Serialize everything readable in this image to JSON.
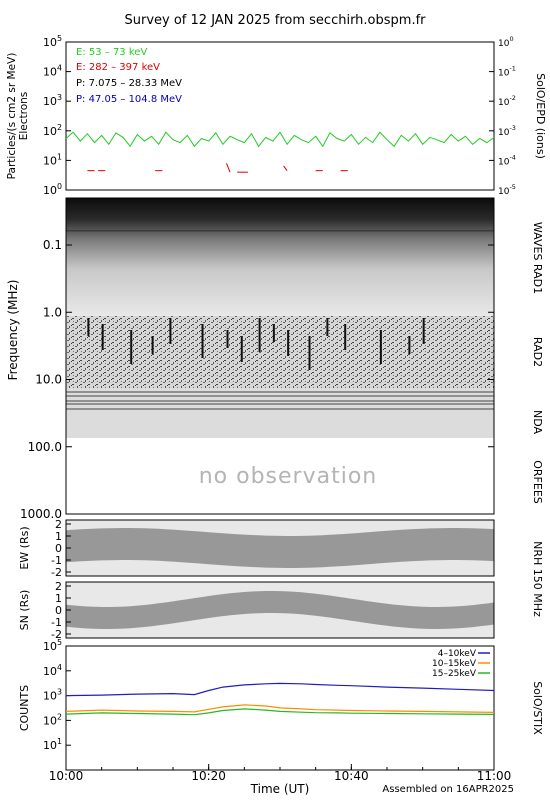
{
  "title": "Survey of 12 JAN 2025 from secchirh.obspm.fr",
  "footer_note": "Assembled on 16APR2025",
  "time_axis": {
    "label": "Time (UT)",
    "ticks": [
      "10:00",
      "10:20",
      "10:40",
      "11:00"
    ],
    "range_minutes": [
      0,
      60
    ]
  },
  "colors": {
    "electron_low": "#22cc22",
    "electron_high": "#dd0000",
    "proton_low": "#000000",
    "proton_high": "#0000cc",
    "stix_4_10": "#1f1fbf",
    "stix_10_15": "#ff8c00",
    "stix_15_25": "#22bb22"
  },
  "panels": {
    "epd": {
      "ylabel": "Particles/(s cm2 sr MeV)",
      "ylabel2": "Electrons",
      "right_label": "SolO/EPD (ions)",
      "left_ticks": [
        "10^0",
        "10^1",
        "10^2",
        "10^3",
        "10^4",
        "10^5"
      ],
      "right_ticks": [
        "10^-5",
        "10^-4",
        "10^-3",
        "10^-2",
        "10^-1",
        "10^0"
      ],
      "legend": [
        "E: 53 – 73 keV",
        "E: 282 – 397 keV",
        "P: 7.075 – 28.33 MeV",
        "P: 47.05 – 104.8 MeV"
      ]
    },
    "waves": {
      "ylabel": "Frequency (MHz)",
      "ticks": [
        "0.1",
        "1.0",
        "10.0",
        "100.0",
        "1000.0"
      ],
      "right_labels": [
        "WAVES RAD1",
        "RAD2",
        "NDA",
        "ORFEES"
      ],
      "no_obs": "no observation"
    },
    "nrh_ew": {
      "ylabel": "EW (Rs)",
      "ticks": [
        "2",
        "1",
        "0",
        "-1",
        "-2"
      ]
    },
    "nrh_sn": {
      "ylabel": "SN (Rs)",
      "ticks": [
        "2",
        "1",
        "0",
        "-1",
        "-2"
      ]
    },
    "nrh_label": "NRH 150 MHz",
    "stix": {
      "ylabel": "COUNTS",
      "right_label": "SolO/STIX",
      "ticks": [
        "10^1",
        "10^2",
        "10^3",
        "10^4",
        "10^5"
      ],
      "legend": [
        "4–10keV",
        "10–15keV",
        "15–25keV"
      ]
    }
  },
  "chart_data": [
    {
      "type": "line",
      "title": "SolO/EPD",
      "x_unit": "minutes after 10:00 UT",
      "y_scale": "log",
      "ylim": [
        1,
        100000
      ],
      "series": [
        {
          "name": "E: 53 – 73 keV",
          "x": [
            0,
            1,
            2,
            3,
            4,
            5,
            6,
            7,
            8,
            9,
            10,
            11,
            12,
            13,
            14,
            15,
            16,
            17,
            18,
            19,
            20,
            21,
            22,
            23,
            24,
            25,
            26,
            27,
            28,
            29,
            30,
            31,
            32,
            33,
            34,
            35,
            36,
            37,
            38,
            39,
            40,
            41,
            42,
            43,
            44,
            45,
            46,
            47,
            48,
            49,
            50,
            51,
            52,
            53,
            54,
            55,
            56,
            57,
            58,
            59,
            60
          ],
          "values": [
            55,
            90,
            45,
            80,
            40,
            70,
            35,
            85,
            60,
            30,
            75,
            45,
            65,
            35,
            90,
            50,
            40,
            70,
            30,
            55,
            45,
            85,
            35,
            65,
            50,
            40,
            80,
            30,
            60,
            45,
            90,
            35,
            70,
            50,
            40,
            65,
            30,
            85,
            55,
            45,
            75,
            35,
            60,
            40,
            90,
            50,
            30,
            70,
            45,
            80,
            35,
            60,
            50,
            40,
            75,
            45,
            65,
            35,
            55,
            40,
            60
          ]
        },
        {
          "name": "E: 282 – 397 keV",
          "x": [
            3,
            4,
            4.5,
            5.5,
            12.5,
            13.5,
            22.5,
            23,
            24,
            25.5,
            30.5,
            31,
            35,
            36,
            38.5,
            39.5
          ],
          "values": [
            4.5,
            4.5,
            4.5,
            4.5,
            4.5,
            4.5,
            8,
            4,
            4,
            4,
            6.5,
            4.5,
            4.5,
            4.5,
            4.5,
            4.5
          ]
        }
      ]
    },
    {
      "type": "heatmap",
      "title": "WAVES RAD1 / RAD2 / NDA / ORFEES dynamic spectrum",
      "y_scale": "log",
      "y_unit": "MHz",
      "ylim": [
        0.02,
        1000
      ]
    },
    {
      "type": "line",
      "title": "SolO/STIX",
      "x_unit": "minutes after 10:00 UT",
      "y_scale": "log",
      "ylim": [
        1,
        100000
      ],
      "series": [
        {
          "name": "4–10keV",
          "x": [
            0,
            5,
            10,
            15,
            18,
            20,
            22,
            25,
            28,
            30,
            33,
            35,
            38,
            40,
            45,
            50,
            55,
            60
          ],
          "values": [
            1000,
            1050,
            1150,
            1200,
            1100,
            1600,
            2200,
            2700,
            3000,
            3100,
            3000,
            2800,
            2600,
            2500,
            2200,
            2000,
            1800,
            1600
          ]
        },
        {
          "name": "10–15keV",
          "x": [
            0,
            5,
            10,
            15,
            18,
            20,
            22,
            25,
            28,
            30,
            33,
            35,
            38,
            40,
            45,
            50,
            55,
            60
          ],
          "values": [
            230,
            260,
            240,
            230,
            220,
            280,
            350,
            420,
            380,
            320,
            290,
            270,
            260,
            250,
            240,
            230,
            220,
            210
          ]
        },
        {
          "name": "15–25keV",
          "x": [
            0,
            5,
            10,
            15,
            18,
            20,
            22,
            25,
            28,
            30,
            33,
            35,
            38,
            40,
            45,
            50,
            55,
            60
          ],
          "values": [
            180,
            200,
            190,
            180,
            170,
            200,
            250,
            290,
            260,
            230,
            215,
            205,
            200,
            195,
            190,
            185,
            180,
            175
          ]
        }
      ]
    }
  ]
}
